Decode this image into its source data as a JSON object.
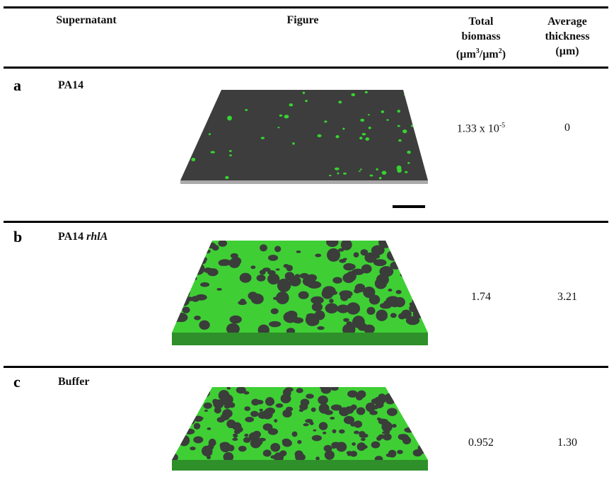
{
  "header": {
    "letter": "",
    "supernatant": "Supernatant",
    "figure": "Figure",
    "total_biomass": {
      "label": "Total biomass",
      "unit": [
        "(µm",
        "3",
        "/µm",
        "2",
        ")"
      ]
    },
    "average_thickness": {
      "label": "Average thickness",
      "unit": "(µm)"
    }
  },
  "rows": [
    {
      "letter": "a",
      "supernatant": "PA14",
      "total_biomass": "1.33 x 10",
      "total_biomass_exponent": "-5",
      "average_thickness": "0"
    },
    {
      "letter": "b",
      "supernatant": "PA14",
      "supernatant_mutant": "rhlA",
      "total_biomass": "1.74",
      "average_thickness": "3.21"
    },
    {
      "letter": "c",
      "supernatant": "Buffer",
      "total_biomass": "0.952",
      "average_thickness": "1.30"
    }
  ]
}
